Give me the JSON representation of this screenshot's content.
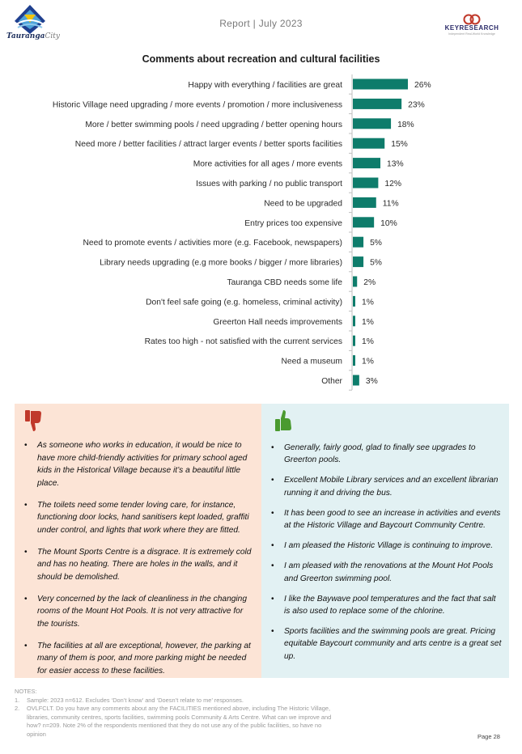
{
  "header": {
    "title": "Report | July 2023",
    "left_logo_text": "Tauranga",
    "left_logo_suffix": "City",
    "right_logo_text": "KEYRESEARCH",
    "right_logo_sub": "Independent Real-World Knowledge"
  },
  "chart_data": {
    "type": "bar",
    "orientation": "horizontal",
    "title": "Comments about recreation and cultural facilities",
    "categories": [
      "Happy with everything / facilities are great",
      "Historic Village need upgrading / more events / promotion / more inclusiveness",
      "More / better swimming pools / need upgrading / better opening hours",
      "Need more / better facilities / attract larger events / better sports facilities",
      "More activities for all ages / more events",
      "Issues with parking / no public transport",
      "Need to be upgraded",
      "Entry prices too expensive",
      "Need to promote events / activities more (e.g. Facebook, newspapers)",
      "Library needs upgrading (e.g more books / bigger / more libraries)",
      "Tauranga CBD needs some life",
      "Don't feel safe going (e.g. homeless, criminal activity)",
      "Greerton Hall needs improvements",
      "Rates too high - not satisfied with the current services",
      "Need a museum",
      "Other"
    ],
    "values": [
      26,
      23,
      18,
      15,
      13,
      12,
      11,
      10,
      5,
      5,
      2,
      1,
      1,
      1,
      1,
      3
    ],
    "value_labels": [
      "26%",
      "23%",
      "18%",
      "15%",
      "13%",
      "12%",
      "11%",
      "10%",
      "5%",
      "5%",
      "2%",
      "1%",
      "1%",
      "1%",
      "1%",
      "3%"
    ],
    "unit": "%",
    "bar_color": "#0e7c6b",
    "grid": false,
    "legend": "none"
  },
  "negative_panel": {
    "icon": "thumbs-down-icon",
    "color": "#c0392b",
    "comments": [
      "As someone who works in education, it would be nice to have more child-friendly activities for primary school aged kids in the Historical Village because it’s a beautiful little place.",
      "The toilets need some tender loving care, for instance, functioning door locks, hand sanitisers kept loaded, graffiti under control, and lights that work where they are fitted.",
      "The Mount Sports Centre is a disgrace. It is extremely cold and has no heating. There are holes in the walls, and it should be demolished.",
      "Very concerned by the lack of cleanliness in the changing rooms of the Mount Hot Pools. It is not very attractive for the tourists.",
      "The facilities at all are exceptional, however, the parking at many of them is poor, and more parking might be needed for easier access to these facilities."
    ]
  },
  "positive_panel": {
    "icon": "thumbs-up-icon",
    "color": "#4a9a2f",
    "comments": [
      "Generally, fairly good, glad to finally see upgrades to Greerton pools.",
      "Excellent Mobile Library services and an excellent librarian running it and driving the bus.",
      "It has been good to see an increase in activities and events at the Historic Village and Baycourt Community Centre.",
      "I am pleased the Historic Village is continuing to improve.",
      "I am pleased with the renovations at the Mount Hot Pools and Greerton swimming pool.",
      "I like the Baywave pool temperatures and the fact that salt is also used to replace some of the chlorine.",
      "Sports facilities and the swimming pools are great. Pricing equitable Baycourt community and arts centre is a great set up."
    ]
  },
  "notes": {
    "heading": "NOTES:",
    "items": [
      {
        "num": "1.",
        "text": "Sample: 2023 n=612. Excludes ‘Don’t know’ and ‘Doesn’t relate to me’ responses."
      },
      {
        "num": "2.",
        "text": "OVLFCLT. Do you have any comments about any the FACILITIES mentioned above, including The Historic Village, libraries, community centres, sports facilities, swimming pools Community & Arts Centre. What can we improve and how? n=209. Note 2% of the respondents mentioned that they do not use any of the public facilities, so have no opinion"
      }
    ]
  },
  "page": {
    "label": "Page 28"
  }
}
